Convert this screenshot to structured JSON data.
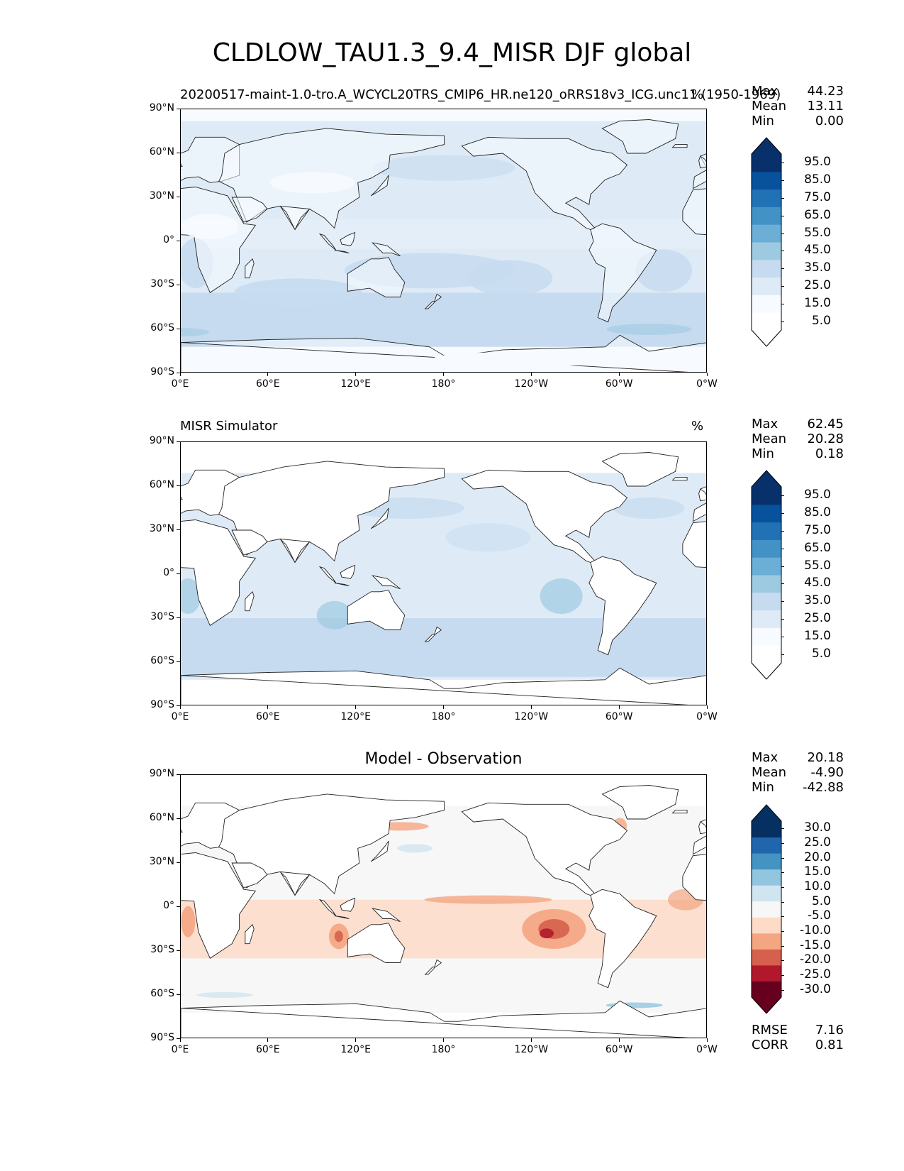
{
  "figure": {
    "title": "CLDLOW_TAU1.3_9.4_MISR DJF global"
  },
  "panels": [
    {
      "id": "test",
      "title_left": "20200517-maint-1.0-tro.A_WCYCL20TRS_CMIP6_HR.ne120_oRRS18v3_ICG.unc11 (1950-1969)",
      "title_center": "",
      "title_right": "%",
      "stats": {
        "max_label": "Max",
        "max": "44.23",
        "mean_label": "Mean",
        "mean": "13.11",
        "min_label": "Min",
        "min": "0.00"
      },
      "colorbar_ticks": [
        "95.0",
        "85.0",
        "75.0",
        "65.0",
        "55.0",
        "45.0",
        "35.0",
        "25.0",
        "15.0",
        "5.0"
      ],
      "colormap": [
        "#f7fbff",
        "#deebf7",
        "#c6dbef",
        "#9ecae1",
        "#6baed6",
        "#4292c6",
        "#2171b5",
        "#08519c",
        "#08306b"
      ]
    },
    {
      "id": "reference",
      "title_left": "MISR Simulator",
      "title_center": "",
      "title_right": "%",
      "stats": {
        "max_label": "Max",
        "max": "62.45",
        "mean_label": "Mean",
        "mean": "20.28",
        "min_label": "Min",
        "min": "0.18"
      },
      "colorbar_ticks": [
        "95.0",
        "85.0",
        "75.0",
        "65.0",
        "55.0",
        "45.0",
        "35.0",
        "25.0",
        "15.0",
        "5.0"
      ]
    },
    {
      "id": "diff",
      "title_left": "",
      "title_center": "Model - Observation",
      "title_right": "",
      "stats": {
        "max_label": "Max",
        "max": "20.18",
        "mean_label": "Mean",
        "mean": "-4.90",
        "min_label": "Min",
        "min": "-42.88"
      },
      "colorbar_ticks": [
        "30.0",
        "25.0",
        "20.0",
        "15.0",
        "10.0",
        "5.0",
        "-5.0",
        "-10.0",
        "-15.0",
        "-20.0",
        "-25.0",
        "-30.0"
      ],
      "colormap": [
        "#67001f",
        "#b2182b",
        "#d6604d",
        "#f4a582",
        "#fddbc7",
        "#f7f7f7",
        "#d1e5f0",
        "#92c5de",
        "#4393c3",
        "#2166ac",
        "#053061"
      ],
      "metrics": {
        "rmse_label": "RMSE",
        "rmse": "7.16",
        "corr_label": "CORR",
        "corr": "0.81"
      }
    }
  ],
  "axes": {
    "x_ticks": [
      "0°E",
      "60°E",
      "120°E",
      "180°",
      "120°W",
      "60°W",
      "0°W"
    ],
    "y_ticks": [
      "90°N",
      "60°N",
      "30°N",
      "0°",
      "30°S",
      "60°S",
      "90°S"
    ]
  },
  "chart_data": [
    {
      "type": "heatmap",
      "title": "CLDLOW_TAU1.3_9.4_MISR DJF global",
      "panel": "20200517-maint-1.0-tro.A_WCYCL20TRS_CMIP6_HR.ne120_oRRS18v3_ICG.unc11 (1950-1969)",
      "units": "%",
      "xlim": [
        0,
        360
      ],
      "ylim": [
        -90,
        90
      ],
      "levels": [
        5,
        15,
        25,
        35,
        45,
        55,
        65,
        75,
        85,
        95
      ],
      "stats": {
        "max": 44.23,
        "mean": 13.11,
        "min": 0.0
      }
    },
    {
      "type": "heatmap",
      "panel": "MISR Simulator",
      "units": "%",
      "xlim": [
        0,
        360
      ],
      "ylim": [
        -90,
        90
      ],
      "levels": [
        5,
        15,
        25,
        35,
        45,
        55,
        65,
        75,
        85,
        95
      ],
      "stats": {
        "max": 62.45,
        "mean": 20.28,
        "min": 0.18
      }
    },
    {
      "type": "heatmap",
      "panel": "Model - Observation",
      "xlim": [
        0,
        360
      ],
      "ylim": [
        -90,
        90
      ],
      "levels": [
        -30,
        -25,
        -20,
        -15,
        -10,
        -5,
        5,
        10,
        15,
        20,
        25,
        30
      ],
      "stats": {
        "max": 20.18,
        "mean": -4.9,
        "min": -42.88,
        "rmse": 7.16,
        "corr": 0.81
      }
    }
  ]
}
